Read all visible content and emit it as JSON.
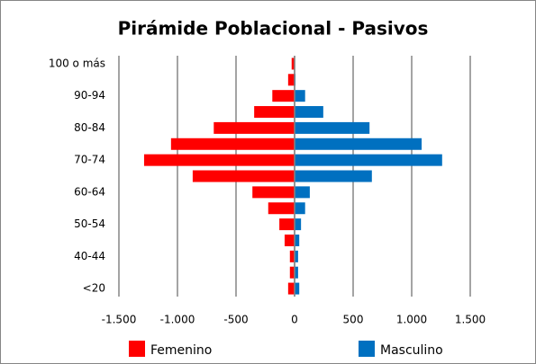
{
  "chart_data": {
    "type": "bar",
    "orientation": "horizontal",
    "stacking": "diverging",
    "title": "Pirámide Poblacional - Pasivos",
    "categories": [
      "<20",
      null,
      "40-44",
      null,
      "50-54",
      null,
      "60-64",
      null,
      "70-74",
      null,
      "80-84",
      null,
      "90-94",
      null,
      "100 o más"
    ],
    "series": [
      {
        "name": "Femenino",
        "color": "#ff0000",
        "values": [
          -55,
          -40,
          -40,
          -85,
          -130,
          -225,
          -360,
          -870,
          -1285,
          -1055,
          -690,
          -345,
          -190,
          -55,
          -25
        ]
      },
      {
        "name": "Masculino",
        "color": "#0070c0",
        "values": [
          40,
          30,
          30,
          40,
          55,
          90,
          130,
          660,
          1260,
          1085,
          640,
          245,
          90,
          8,
          3
        ]
      }
    ],
    "xlim": [
      -1500,
      1500
    ],
    "xticks": [
      {
        "value": -1500,
        "label": "-1.500"
      },
      {
        "value": -1000,
        "label": "-1.000"
      },
      -500,
      0,
      500,
      {
        "value": 1000,
        "label": "1.000"
      },
      {
        "value": 1500,
        "label": "1.500"
      }
    ],
    "grid": true,
    "legend": "bottom"
  }
}
